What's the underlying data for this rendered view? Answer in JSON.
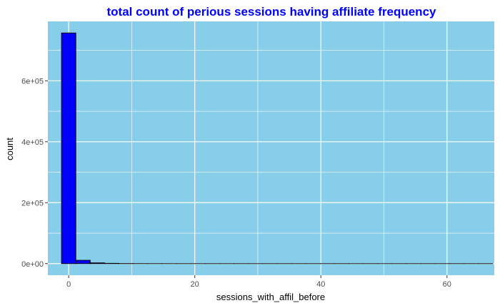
{
  "chart_data": {
    "type": "bar",
    "title": "total count of perious sessions having affiliate frequency",
    "xlabel": "sessions_with_affil_before",
    "ylabel": "count",
    "xlim": [
      -3.3,
      67.5
    ],
    "ylim": [
      -38000,
      795000
    ],
    "x_ticks": [
      0,
      20,
      40,
      60
    ],
    "x_tick_labels": [
      "0",
      "20",
      "40",
      "60"
    ],
    "x_minor_ticks": [
      10,
      30,
      50
    ],
    "y_ticks": [
      0,
      200000,
      400000,
      600000
    ],
    "y_tick_labels": [
      "0e+00",
      "2e+05",
      "4e+05",
      "6e+05"
    ],
    "y_minor_ticks": [
      100000,
      300000,
      500000,
      700000
    ],
    "grid": true,
    "bin_width": 2.28,
    "bins": [
      {
        "x0": -1.14,
        "x1": 1.14,
        "count": 757000
      },
      {
        "x0": 1.14,
        "x1": 3.42,
        "count": 11000
      },
      {
        "x0": 3.42,
        "x1": 5.7,
        "count": 2500
      },
      {
        "x0": 5.7,
        "x1": 7.98,
        "count": 1000
      },
      {
        "x0": 7.98,
        "x1": 10.26,
        "count": 300
      },
      {
        "x0": 10.26,
        "x1": 12.54,
        "count": 120
      },
      {
        "x0": 12.54,
        "x1": 14.82,
        "count": 60
      },
      {
        "x0": 14.82,
        "x1": 17.1,
        "count": 30
      },
      {
        "x0": 17.1,
        "x1": 19.38,
        "count": 15
      },
      {
        "x0": 19.38,
        "x1": 21.66,
        "count": 8
      },
      {
        "x0": 21.66,
        "x1": 23.94,
        "count": 5
      },
      {
        "x0": 23.94,
        "x1": 26.22,
        "count": 3
      },
      {
        "x0": 26.22,
        "x1": 28.5,
        "count": 2
      },
      {
        "x0": 28.5,
        "x1": 30.78,
        "count": 1
      },
      {
        "x0": 30.78,
        "x1": 33.06,
        "count": 1
      },
      {
        "x0": 33.06,
        "x1": 35.34,
        "count": 1
      },
      {
        "x0": 35.34,
        "x1": 37.62,
        "count": 1
      },
      {
        "x0": 37.62,
        "x1": 39.9,
        "count": 0
      },
      {
        "x0": 39.9,
        "x1": 42.18,
        "count": 1
      },
      {
        "x0": 42.18,
        "x1": 44.46,
        "count": 0
      },
      {
        "x0": 44.46,
        "x1": 46.74,
        "count": 1
      },
      {
        "x0": 46.74,
        "x1": 49.02,
        "count": 0
      },
      {
        "x0": 49.02,
        "x1": 51.3,
        "count": 0
      },
      {
        "x0": 51.3,
        "x1": 53.58,
        "count": 1
      },
      {
        "x0": 53.58,
        "x1": 55.86,
        "count": 0
      },
      {
        "x0": 55.86,
        "x1": 58.14,
        "count": 0
      },
      {
        "x0": 58.14,
        "x1": 60.42,
        "count": 0
      },
      {
        "x0": 60.42,
        "x1": 62.7,
        "count": 0
      },
      {
        "x0": 62.7,
        "x1": 64.98,
        "count": 0
      },
      {
        "x0": 64.98,
        "x1": 67.26,
        "count": 1
      }
    ],
    "colors": {
      "panel_background": "#87ceeb",
      "grid": "#ffffff",
      "bar_fill": "#0000ff",
      "bar_outline": "#000000",
      "title": "#0000ff",
      "tick_label": "#4d4d4d",
      "axis_title": "#000000"
    }
  }
}
